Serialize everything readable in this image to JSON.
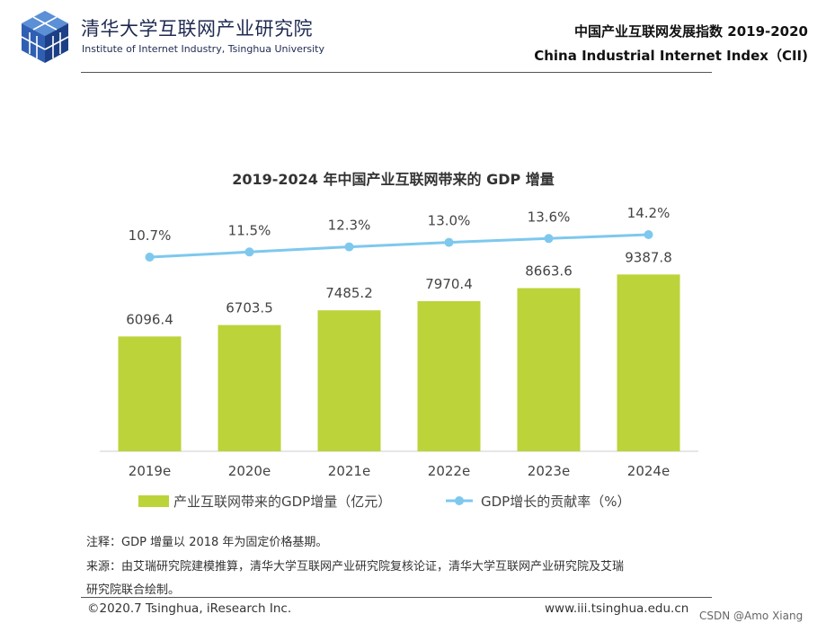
{
  "header": {
    "institute_cn": "清华大学互联网产业研究院",
    "institute_en": "Institute of Internet Industry, Tsinghua University",
    "report_cn": "中国产业互联网发展指数 2019-2020",
    "report_en": "China Industrial Internet Index（CII)",
    "logo_icon": "cube-logo-icon"
  },
  "chart_data": {
    "type": "bar",
    "title": "2019-2024 年中国产业互联网带来的 GDP 增量",
    "categories": [
      "2019e",
      "2020e",
      "2021e",
      "2022e",
      "2023e",
      "2024e"
    ],
    "series": [
      {
        "name": "产业互联网带来的GDP增量（亿元）",
        "type": "bar",
        "values": [
          6096.4,
          6703.5,
          7485.2,
          7970.4,
          8663.6,
          9387.8
        ],
        "labels": [
          "6096.4",
          "6703.5",
          "7485.2",
          "7970.4",
          "8663.6",
          "9387.8"
        ],
        "color": "#BCD33A"
      },
      {
        "name": "GDP增长的贡献率（%）",
        "type": "line",
        "values": [
          10.7,
          11.5,
          12.3,
          13.0,
          13.6,
          14.2
        ],
        "labels": [
          "10.7%",
          "11.5%",
          "12.3%",
          "13.0%",
          "13.6%",
          "14.2%"
        ],
        "color": "#7EC8EE"
      }
    ],
    "legend_position": "bottom",
    "grid": false
  },
  "notes": {
    "note": "注释：GDP 增量以 2018 年为固定价格基期。",
    "source_line1": "来源：由艾瑞研究院建模推算，清华大学互联网产业研究院复核论证，清华大学互联网产业研究院及艾瑞",
    "source_line2": "研究院联合绘制。"
  },
  "footer": {
    "copyright": "©2020.7 Tsinghua, iResearch Inc.",
    "website": "www.iii.tsinghua.edu.cn",
    "watermark": "CSDN @Amo Xiang"
  }
}
